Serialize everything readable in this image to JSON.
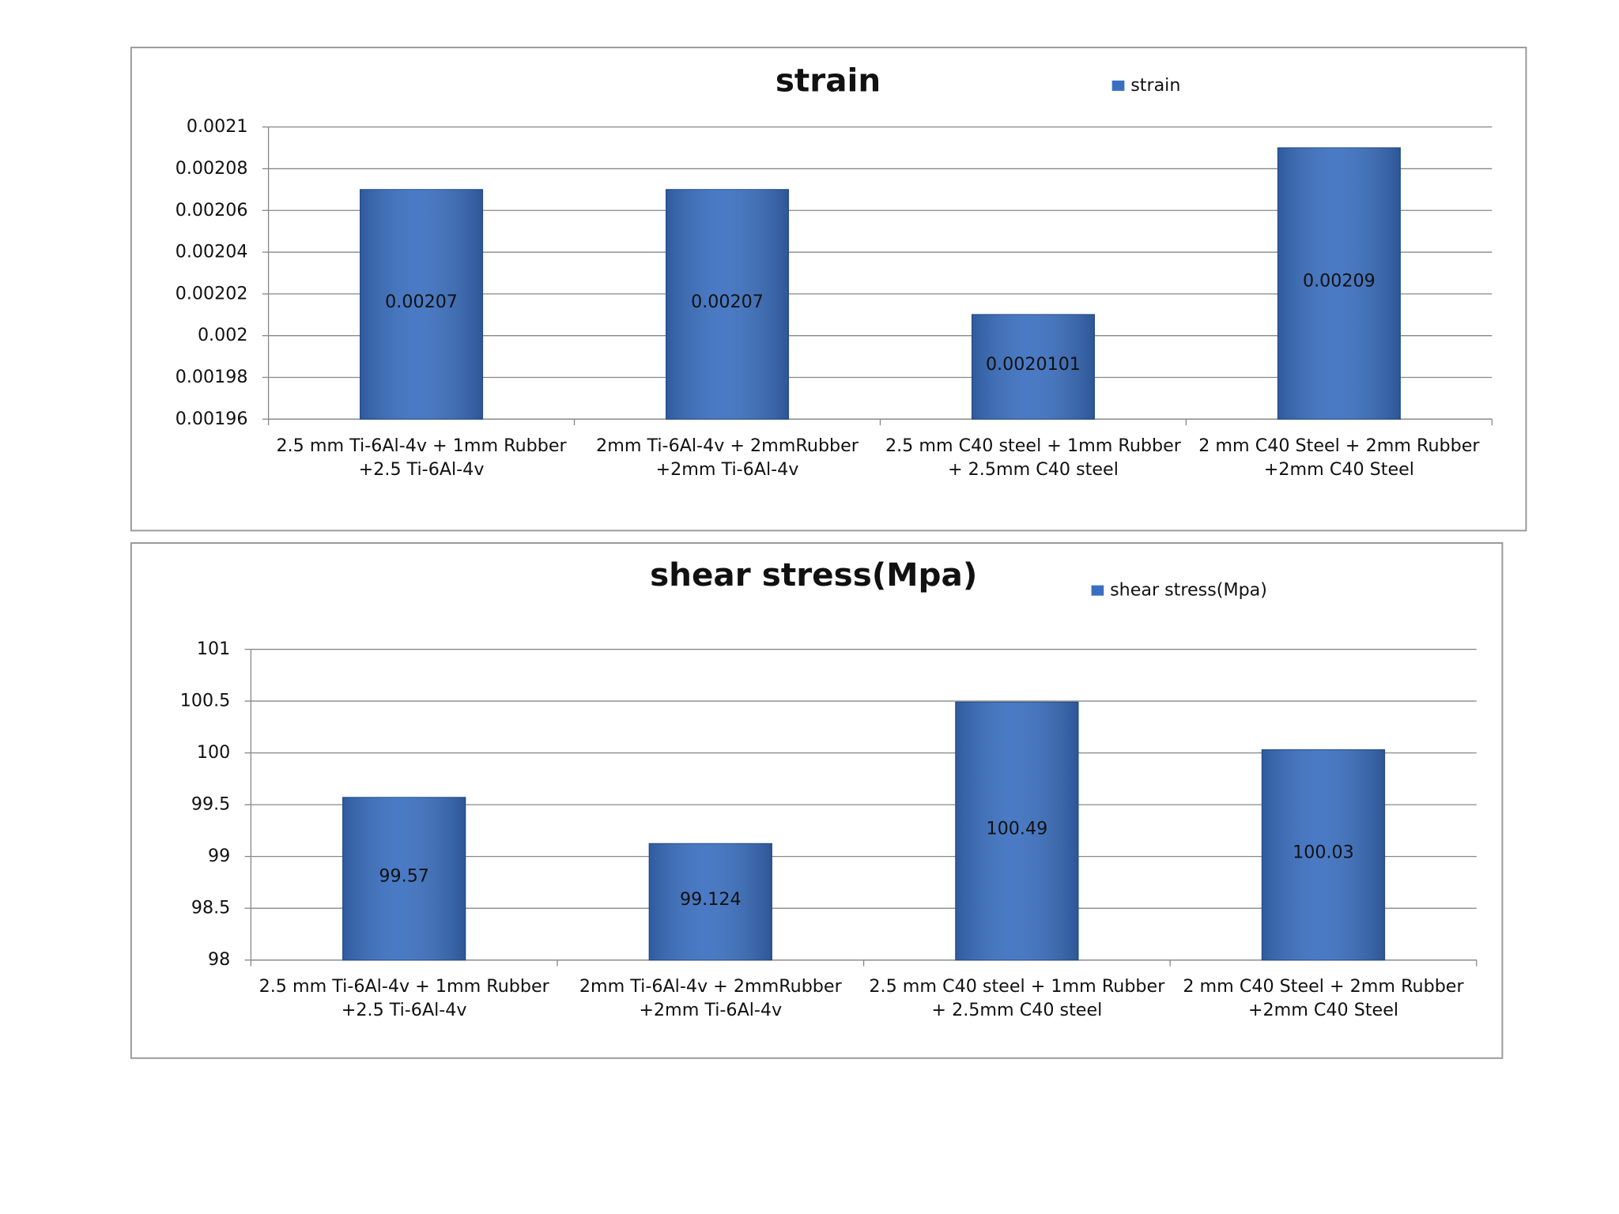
{
  "chart_data": [
    {
      "type": "bar",
      "title": "strain",
      "categories": [
        "2.5 mm Ti-6Al-4v + 1mm Rubber +2.5 Ti-6Al-4v",
        "2mm Ti-6Al-4v + 2mmRubber +2mm Ti-6Al-4v",
        "2.5 mm C40 steel + 1mm Rubber + 2.5mm C40 steel",
        "2 mm C40 Steel + 2mm Rubber +2mm C40 Steel"
      ],
      "series": [
        {
          "name": "strain",
          "color": "#3a6fc0",
          "values": [
            0.00207,
            0.00207,
            0.0020101,
            0.00209
          ]
        }
      ],
      "ylim": [
        0.00196,
        0.0021
      ],
      "yticks": [
        0.00196,
        0.00198,
        0.002,
        0.00202,
        0.00204,
        0.00206,
        0.00208,
        0.0021
      ],
      "grid": true,
      "legend": "top"
    },
    {
      "type": "bar",
      "title": "shear stress(Mpa)",
      "categories": [
        "2.5 mm Ti-6Al-4v + 1mm Rubber +2.5 Ti-6Al-4v",
        "2mm Ti-6Al-4v + 2mmRubber +2mm Ti-6Al-4v",
        "2.5 mm C40 steel + 1mm Rubber + 2.5mm C40 steel",
        "2 mm C40 Steel + 2mm Rubber +2mm C40 Steel"
      ],
      "series": [
        {
          "name": "shear stress(Mpa)",
          "color": "#3a6fc0",
          "values": [
            99.57,
            99.124,
            100.49,
            100.03
          ]
        }
      ],
      "ylim": [
        98,
        101
      ],
      "yticks": [
        98,
        98.5,
        99,
        99.5,
        100,
        100.5,
        101
      ],
      "grid": true,
      "legend": "top"
    }
  ]
}
